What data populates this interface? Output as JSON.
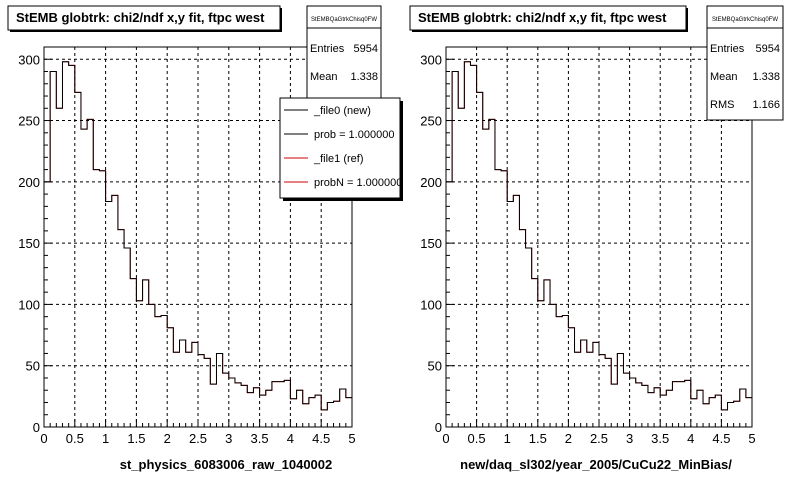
{
  "footer": {
    "text": ""
  },
  "charts": [
    {
      "title": "StEMB globtrk: chi2/ndf x,y fit, ftpc west",
      "stats": {
        "name": "StEMBQaGtrkChisq0FW",
        "rows": [
          {
            "label": "Entries",
            "value": "5954"
          },
          {
            "label": "Mean",
            "value": "1.338"
          }
        ]
      },
      "legend": {
        "entries": [
          {
            "label": "_file0 (new)",
            "color": "#000000"
          },
          {
            "label": "prob = 1.000000",
            "color": "#000000"
          },
          {
            "label": "_file1 (ref)",
            "color": "#cc0000"
          },
          {
            "label": "probN = 1.000000",
            "color": "#cc0000"
          }
        ]
      },
      "xlabel": "st_physics_6083006_raw_1040002"
    },
    {
      "title": "StEMB globtrk: chi2/ndf x,y fit, ftpc west",
      "stats": {
        "name": "StEMBQaGtrkChisq0FW",
        "rows": [
          {
            "label": "Entries",
            "value": "5954"
          },
          {
            "label": "Mean",
            "value": "1.338"
          },
          {
            "label": "RMS",
            "value": "1.166"
          }
        ]
      },
      "legend": null,
      "xlabel": "new/daq_sl302/year_2005/CuCu22_MinBias/"
    }
  ],
  "chart_data": [
    {
      "type": "histogram",
      "bin_width": 0.1,
      "xlim": [
        0,
        5
      ],
      "ylim": [
        0,
        310
      ],
      "xticks": [
        "0",
        "0.5",
        "1",
        "1.5",
        "2",
        "2.5",
        "3",
        "3.5",
        "4",
        "4.5",
        "5"
      ],
      "yticks": [
        "0",
        "50",
        "100",
        "150",
        "200",
        "250",
        "300"
      ],
      "grid": true,
      "series": [
        {
          "name": "_file1 (ref)",
          "color": "#cc0000",
          "values": [
            200,
            290,
            260,
            298,
            295,
            273,
            243,
            251,
            210,
            209,
            184,
            189,
            161,
            146,
            121,
            103,
            120,
            100,
            90,
            91,
            81,
            61,
            71,
            61,
            69,
            59,
            56,
            35,
            60,
            44,
            40,
            36,
            34,
            28,
            32,
            26,
            30,
            37,
            37,
            38,
            23,
            30,
            19,
            24,
            26,
            14,
            20,
            21,
            31,
            24
          ]
        },
        {
          "name": "_file0 (new)",
          "color": "#000000",
          "values": [
            200,
            290,
            260,
            298,
            295,
            273,
            243,
            251,
            210,
            209,
            184,
            189,
            161,
            146,
            121,
            103,
            120,
            100,
            90,
            91,
            81,
            61,
            71,
            61,
            69,
            59,
            56,
            35,
            60,
            44,
            40,
            36,
            34,
            28,
            32,
            26,
            30,
            37,
            37,
            38,
            23,
            30,
            19,
            24,
            26,
            14,
            20,
            21,
            31,
            24
          ]
        }
      ]
    },
    {
      "type": "histogram",
      "bin_width": 0.1,
      "xlim": [
        0,
        5
      ],
      "ylim": [
        0,
        310
      ],
      "xticks": [
        "0",
        "0.5",
        "1",
        "1.5",
        "2",
        "2.5",
        "3",
        "3.5",
        "4",
        "4.5",
        "5"
      ],
      "yticks": [
        "0",
        "50",
        "100",
        "150",
        "200",
        "250",
        "300"
      ],
      "grid": true,
      "series": [
        {
          "name": "_file1 (ref)",
          "color": "#cc0000",
          "values": [
            200,
            290,
            260,
            298,
            295,
            273,
            243,
            251,
            210,
            209,
            184,
            189,
            161,
            146,
            121,
            103,
            120,
            100,
            90,
            91,
            81,
            61,
            71,
            61,
            69,
            59,
            56,
            35,
            60,
            44,
            40,
            36,
            34,
            28,
            32,
            26,
            30,
            37,
            37,
            38,
            23,
            30,
            19,
            24,
            26,
            14,
            20,
            21,
            31,
            24
          ]
        },
        {
          "name": "_file0 (new)",
          "color": "#000000",
          "values": [
            200,
            290,
            260,
            298,
            295,
            273,
            243,
            251,
            210,
            209,
            184,
            189,
            161,
            146,
            121,
            103,
            120,
            100,
            90,
            91,
            81,
            61,
            71,
            61,
            69,
            59,
            56,
            35,
            60,
            44,
            40,
            36,
            34,
            28,
            32,
            26,
            30,
            37,
            37,
            38,
            23,
            30,
            19,
            24,
            26,
            14,
            20,
            21,
            31,
            24
          ]
        }
      ]
    }
  ]
}
